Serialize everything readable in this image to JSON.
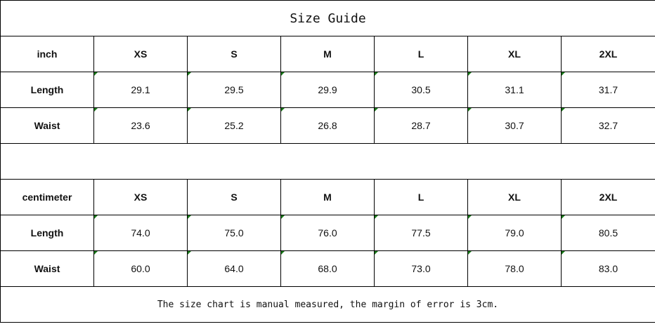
{
  "title": "Size Guide",
  "sizes": [
    "XS",
    "S",
    "M",
    "L",
    "XL",
    "2XL"
  ],
  "inch": {
    "unit_label": "inch",
    "rows": [
      {
        "label": "Length",
        "values": [
          "29.1",
          "29.5",
          "29.9",
          "30.5",
          "31.1",
          "31.7"
        ]
      },
      {
        "label": "Waist",
        "values": [
          "23.6",
          "25.2",
          "26.8",
          "28.7",
          "30.7",
          "32.7"
        ]
      }
    ]
  },
  "centimeter": {
    "unit_label": "centimeter",
    "rows": [
      {
        "label": "Length",
        "values": [
          "74.0",
          "75.0",
          "76.0",
          "77.5",
          "79.0",
          "80.5"
        ]
      },
      {
        "label": "Waist",
        "values": [
          "60.0",
          "64.0",
          "68.0",
          "73.0",
          "78.0",
          "83.0"
        ]
      }
    ]
  },
  "note": "The size chart is manual measured, the margin of error is 3cm."
}
